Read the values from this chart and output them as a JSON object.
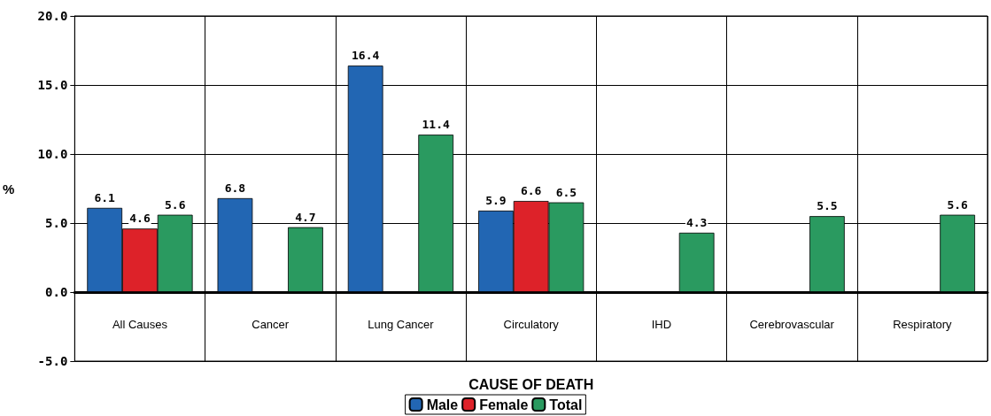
{
  "chart_data": {
    "type": "bar",
    "xlabel": "CAUSE OF DEATH",
    "ylabel": "%",
    "categories": [
      "All Causes",
      "Cancer",
      "Lung Cancer",
      "Circulatory",
      "IHD",
      "Cerebrovascular",
      "Respiratory"
    ],
    "series": [
      {
        "name": "Male",
        "color": "#2266b3",
        "values": [
          6.1,
          6.8,
          16.4,
          5.9,
          null,
          null,
          null
        ]
      },
      {
        "name": "Female",
        "color": "#dd2229",
        "values": [
          4.6,
          null,
          null,
          6.6,
          null,
          null,
          null
        ]
      },
      {
        "name": "Total",
        "color": "#2a9a60",
        "values": [
          5.6,
          4.7,
          11.4,
          6.5,
          4.3,
          5.5,
          5.6
        ]
      }
    ],
    "ylim": [
      -5,
      20
    ],
    "yticks": [
      {
        "value": -5,
        "label": "-5.0"
      },
      {
        "value": 0,
        "label": "0.0"
      },
      {
        "value": 5,
        "label": "5.0"
      },
      {
        "value": 10,
        "label": "10.0"
      },
      {
        "value": 15,
        "label": "15.0"
      },
      {
        "value": 20,
        "label": "20.0"
      }
    ],
    "grid": true,
    "legend": "bottom",
    "data_labels": true
  }
}
